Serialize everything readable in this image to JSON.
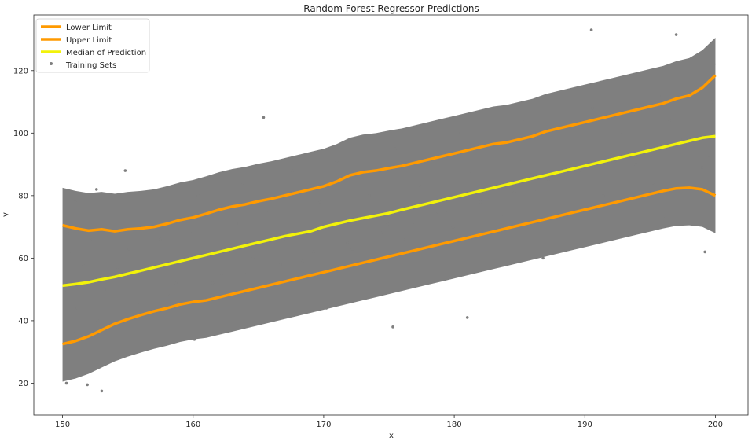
{
  "chart_data": {
    "type": "scatter",
    "title": "Random Forest Regressor Predictions",
    "xlabel": "x",
    "ylabel": "y",
    "xlim": [
      147.8,
      202.5
    ],
    "ylim": [
      9.8,
      137.8
    ],
    "xticks": [
      150,
      160,
      170,
      180,
      190,
      200
    ],
    "yticks": [
      20,
      40,
      60,
      80,
      100,
      120
    ],
    "grid": false,
    "legend_position": "top-left",
    "series": [
      {
        "name": "Lower Limit",
        "kind": "line",
        "color": "#ff9a00",
        "x": [
          150,
          151,
          152,
          153,
          154,
          155,
          156,
          157,
          158,
          159,
          160,
          161,
          162,
          163,
          164,
          165,
          166,
          167,
          168,
          169,
          170,
          171,
          172,
          173,
          174,
          175,
          176,
          177,
          178,
          179,
          180,
          181,
          182,
          183,
          184,
          185,
          186,
          187,
          188,
          189,
          190,
          191,
          192,
          193,
          194,
          195,
          196,
          197,
          198,
          199,
          200
        ],
        "y": [
          70.5,
          69.5,
          68.8,
          69.2,
          68.6,
          69.2,
          69.5,
          70.0,
          71.0,
          72.2,
          73.0,
          74.2,
          75.5,
          76.5,
          77.2,
          78.2,
          79.0,
          80.0,
          81.0,
          82.0,
          83.0,
          84.5,
          86.5,
          87.5,
          88.0,
          88.8,
          89.5,
          90.5,
          91.5,
          92.5,
          93.5,
          94.5,
          95.5,
          96.5,
          97.0,
          98.0,
          99.0,
          100.5,
          101.5,
          102.5,
          103.5,
          104.5,
          105.5,
          106.5,
          107.5,
          108.5,
          109.5,
          111.0,
          112.0,
          114.5,
          118.5
        ]
      },
      {
        "name": "Upper Limit",
        "kind": "line",
        "color": "#ff9a00",
        "x": [
          150,
          151,
          152,
          153,
          154,
          155,
          156,
          157,
          158,
          159,
          160,
          161,
          162,
          163,
          164,
          165,
          166,
          167,
          168,
          169,
          170,
          171,
          172,
          173,
          174,
          175,
          176,
          177,
          178,
          179,
          180,
          181,
          182,
          183,
          184,
          185,
          186,
          187,
          188,
          189,
          190,
          191,
          192,
          193,
          194,
          195,
          196,
          197,
          198,
          199,
          200
        ],
        "y": [
          32.5,
          33.5,
          35.0,
          37.0,
          39.0,
          40.5,
          41.8,
          43.0,
          44.0,
          45.2,
          46.0,
          46.5,
          47.5,
          48.5,
          49.5,
          50.5,
          51.5,
          52.5,
          53.5,
          54.5,
          55.5,
          56.5,
          57.5,
          58.5,
          59.5,
          60.5,
          61.5,
          62.5,
          63.5,
          64.5,
          65.5,
          66.5,
          67.5,
          68.5,
          69.5,
          70.5,
          71.5,
          72.5,
          73.5,
          74.5,
          75.5,
          76.5,
          77.5,
          78.5,
          79.5,
          80.5,
          81.5,
          82.3,
          82.5,
          82.0,
          80.0
        ]
      },
      {
        "name": "Median of Prediction",
        "kind": "line",
        "color": "#f2f20a",
        "x": [
          150,
          151,
          152,
          153,
          154,
          155,
          156,
          157,
          158,
          159,
          160,
          161,
          162,
          163,
          164,
          165,
          166,
          167,
          168,
          169,
          170,
          171,
          172,
          173,
          174,
          175,
          176,
          177,
          178,
          179,
          180,
          181,
          182,
          183,
          184,
          185,
          186,
          187,
          188,
          189,
          190,
          191,
          192,
          193,
          194,
          195,
          196,
          197,
          198,
          199,
          200
        ],
        "y": [
          51.2,
          51.7,
          52.3,
          53.2,
          54.0,
          55.0,
          56.0,
          57.0,
          58.0,
          59.0,
          60.0,
          61.0,
          62.0,
          63.0,
          64.0,
          65.0,
          66.0,
          67.0,
          67.8,
          68.6,
          70.0,
          71.0,
          72.0,
          72.8,
          73.6,
          74.4,
          75.5,
          76.5,
          77.5,
          78.5,
          79.5,
          80.5,
          81.5,
          82.5,
          83.5,
          84.5,
          85.5,
          86.5,
          87.5,
          88.5,
          89.5,
          90.5,
          91.5,
          92.5,
          93.5,
          94.5,
          95.5,
          96.5,
          97.5,
          98.5,
          99.0
        ]
      },
      {
        "name": "Training Sets",
        "kind": "scatter",
        "color": "#7f7f7f",
        "x": [
          150.2,
          150.5,
          151.1,
          151.6,
          152.3,
          153.4,
          154.2,
          155.1,
          156.3,
          157.5,
          158.7,
          159.8,
          160.9,
          162.2,
          163.5,
          164.6,
          165.8,
          167.1,
          168.4,
          169.7,
          170.8,
          172.2,
          173.5,
          174.9,
          176.1,
          177.4,
          178.6,
          179.9,
          181.2,
          182.5,
          183.7,
          185.0,
          186.3,
          187.6,
          188.8,
          190.1,
          191.4,
          192.7,
          193.9,
          195.2,
          196.5,
          197.8,
          199.0,
          199.7,
          150.8,
          152.7,
          155.8,
          158.2,
          161.5,
          164.1,
          166.7,
          169.2,
          171.8,
          174.4,
          177.0,
          179.5,
          182.0,
          184.6,
          187.2,
          189.7,
          192.3,
          194.8,
          197.3,
          199.5,
          150.4,
          153.8,
          157.1,
          160.4,
          163.8,
          167.6,
          171.0,
          175.5,
          180.3,
          185.4,
          190.6,
          195.7,
          199.9,
          150.3,
          151.9,
          153.0,
          165.4,
          190.5,
          197.0,
          151.0,
          152.6,
          154.8,
          175.3,
          181.0,
          199.2,
          160.1,
          170.2,
          186.8,
          196.2
        ],
        "y": [
          49.0,
          62.0,
          44.0,
          58.0,
          66.0,
          50.0,
          57.0,
          63.0,
          49.0,
          66.0,
          52.0,
          68.0,
          62.0,
          55.0,
          71.0,
          60.0,
          75.0,
          66.0,
          59.0,
          78.0,
          72.0,
          63.0,
          80.0,
          71.0,
          66.0,
          83.0,
          74.0,
          70.0,
          87.0,
          79.0,
          73.0,
          91.0,
          82.0,
          76.0,
          95.0,
          86.0,
          80.0,
          100.0,
          90.0,
          84.0,
          104.0,
          95.0,
          89.0,
          110.0,
          36.0,
          40.0,
          45.0,
          48.0,
          52.0,
          55.0,
          58.0,
          62.0,
          65.0,
          68.0,
          71.0,
          75.0,
          78.0,
          81.0,
          85.0,
          88.0,
          91.0,
          94.0,
          98.0,
          92.0,
          68.0,
          72.0,
          76.0,
          80.0,
          84.0,
          88.0,
          91.0,
          95.0,
          100.0,
          104.0,
          108.0,
          112.0,
          122.0,
          20.0,
          19.5,
          17.5,
          105.0,
          133.0,
          131.5,
          78.0,
          82.0,
          88.0,
          38.0,
          41.0,
          62.0,
          34.0,
          44.0,
          60.0,
          73.0
        ]
      }
    ]
  }
}
